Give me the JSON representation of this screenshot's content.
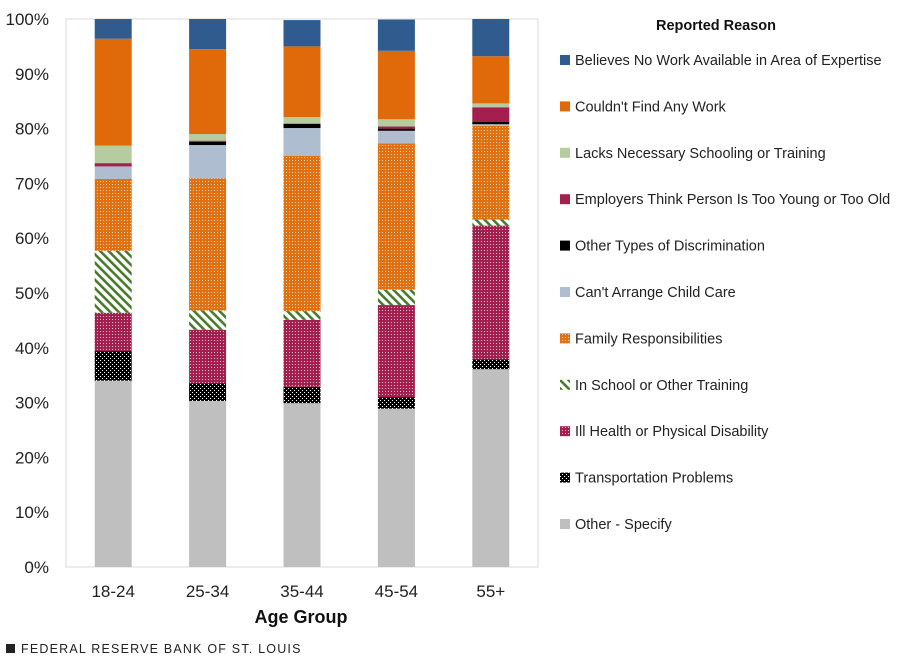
{
  "chart_data": {
    "type": "bar",
    "stacked": true,
    "xlabel": "Age Group",
    "ylabel": "",
    "ylim": [
      0,
      100
    ],
    "y_ticks": [
      0,
      10,
      20,
      30,
      40,
      50,
      60,
      70,
      80,
      90,
      100
    ],
    "y_tick_labels": [
      "0%",
      "10%",
      "20%",
      "30%",
      "40%",
      "50%",
      "60%",
      "70%",
      "80%",
      "90%",
      "100%"
    ],
    "categories": [
      "18-24",
      "25-34",
      "35-44",
      "45-54",
      "55+"
    ],
    "legend_title": "Reported Reason",
    "legend_position": "right",
    "series": [
      {
        "name": "Other - Specify",
        "color": "#bfbfbf",
        "pattern": "solid",
        "values": [
          34.0,
          30.3,
          29.9,
          28.9,
          36.1
        ]
      },
      {
        "name": "Transportation Problems",
        "color": "#000000",
        "pattern": "checker",
        "values": [
          5.4,
          3.2,
          3.0,
          2.1,
          1.8
        ]
      },
      {
        "name": "Ill Health or Physical Disability",
        "color": "#a3204e",
        "pattern": "dots",
        "values": [
          7.0,
          9.8,
          12.2,
          16.8,
          24.4
        ]
      },
      {
        "name": "In School or Other Training",
        "color": "#4a7a2e",
        "pattern": "diagonal",
        "values": [
          11.3,
          3.5,
          1.6,
          2.8,
          1.1
        ]
      },
      {
        "name": "Family Responsibilities",
        "color": "#e07010",
        "pattern": "dots",
        "values": [
          13.1,
          24.1,
          28.3,
          26.7,
          17.1
        ]
      },
      {
        "name": "Can't Arrange Child Care",
        "color": "#aebdd0",
        "pattern": "solid",
        "values": [
          2.3,
          6.1,
          5.1,
          2.3,
          0.3
        ]
      },
      {
        "name": "Other Types of Discrimination",
        "color": "#000000",
        "pattern": "solid",
        "values": [
          0.0,
          0.6,
          0.8,
          0.4,
          0.4
        ]
      },
      {
        "name": "Employers Think Person Is Too Young or Too Old",
        "color": "#a3204e",
        "pattern": "solid",
        "values": [
          0.6,
          0.2,
          0.0,
          0.4,
          2.7
        ]
      },
      {
        "name": "Lacks Necessary Schooling or Training",
        "color": "#b5cc9e",
        "pattern": "solid",
        "values": [
          3.2,
          1.2,
          1.2,
          1.3,
          0.7
        ]
      },
      {
        "name": "Couldn't Find Any Work",
        "color": "#e06a0a",
        "pattern": "solid",
        "values": [
          19.5,
          15.5,
          12.9,
          12.5,
          8.6
        ]
      },
      {
        "name": "Believes No Work Available in Area of Expertise",
        "color": "#2f5b8f",
        "pattern": "solid",
        "values": [
          3.6,
          5.5,
          4.8,
          5.7,
          6.8
        ]
      }
    ],
    "legend_order": [
      "Believes No Work Available in Area of Expertise",
      "Couldn't Find Any Work",
      "Lacks Necessary Schooling or Training",
      "Employers Think Person Is Too Young or Too Old",
      "Other Types of Discrimination",
      "Can't Arrange Child Care",
      "Family Responsibilities",
      "In School or Other Training",
      "Ill Health or Physical Disability",
      "Transportation Problems",
      "Other - Specify"
    ]
  },
  "footer": {
    "source": "FEDERAL RESERVE BANK OF ST. LOUIS"
  }
}
